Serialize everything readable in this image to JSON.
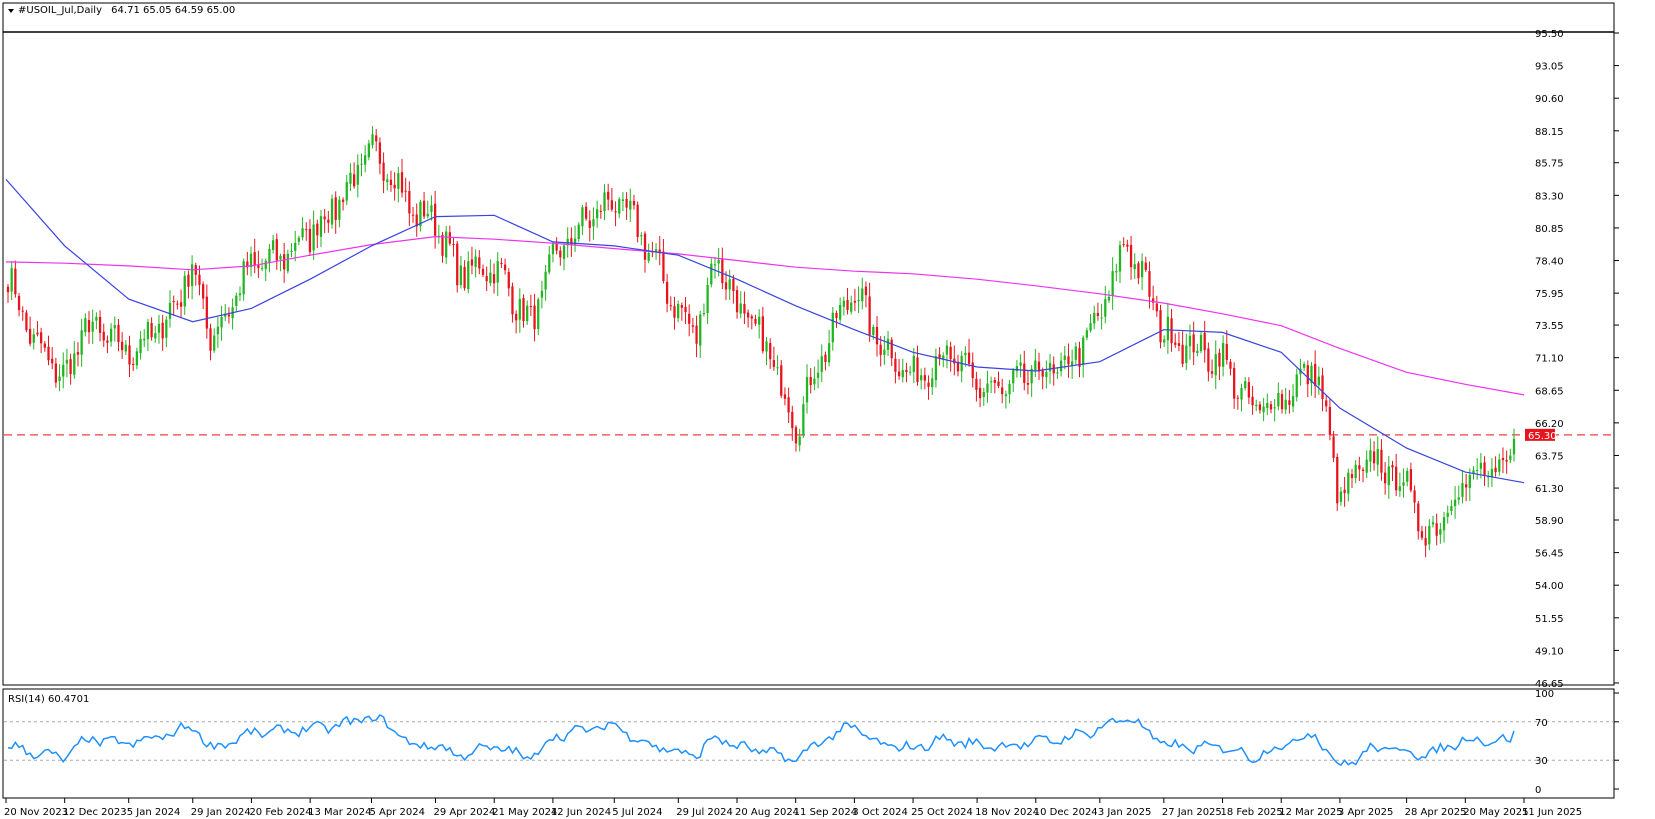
{
  "header": {
    "symbol": "#USOIL_Jul,Daily",
    "ohlc": "64.71 65.05 64.59 65.00"
  },
  "price_axis": {
    "ticks": [
      "95.50",
      "93.05",
      "90.60",
      "88.15",
      "85.75",
      "83.30",
      "80.85",
      "78.40",
      "75.95",
      "73.55",
      "71.10",
      "68.65",
      "66.20",
      "63.75",
      "61.30",
      "58.90",
      "56.45",
      "54.00",
      "51.55",
      "49.10",
      "46.65"
    ],
    "current_price_label": "65.30"
  },
  "rsi_panel": {
    "label": "RSI(14) 60.4701",
    "ticks": [
      "100",
      "70",
      "30",
      "0"
    ]
  },
  "time_axis": {
    "labels": [
      "20 Nov 2023",
      "12 Dec 2023",
      "5 Jan 2024",
      "29 Jan 2024",
      "20 Feb 2024",
      "13 Mar 2024",
      "5 Apr 2024",
      "29 Apr 2024",
      "21 May 2024",
      "12 Jun 2024",
      "5 Jul 2024",
      "29 Jul 2024",
      "20 Aug 2024",
      "11 Sep 2024",
      "3 Oct 2024",
      "25 Oct 2024",
      "18 Nov 2024",
      "10 Dec 2024",
      "3 Jan 2025",
      "27 Jan 2025",
      "18 Feb 2025",
      "12 Mar 2025",
      "3 Apr 2025",
      "28 Apr 2025",
      "20 May 2025",
      "11 Jun 2025"
    ]
  },
  "colors": {
    "bull": "#21b521",
    "bear": "#e8141d",
    "ma_fast": "#3844e0",
    "ma_slow": "#ee33ee",
    "rsi": "#1e90ff",
    "hline": "#f04040",
    "price_badge": "#e8141d"
  },
  "chart_data": {
    "type": "candlestick",
    "instrument": "#USOIL_Jul",
    "timeframe": "Daily",
    "last_ohlc": {
      "open": 64.71,
      "high": 65.05,
      "low": 64.59,
      "close": 65.0
    },
    "ylim": [
      46.65,
      95.5
    ],
    "horizontal_level": 65.3,
    "close_path": [
      {
        "date": "20 Nov 2023",
        "close": 77.5
      },
      {
        "date": "1 Dec 2023",
        "close": 72.0
      },
      {
        "date": "12 Dec 2023",
        "close": 69.5
      },
      {
        "date": "20 Dec 2023",
        "close": 73.5
      },
      {
        "date": "5 Jan 2024",
        "close": 71.5
      },
      {
        "date": "18 Jan 2024",
        "close": 73.5
      },
      {
        "date": "29 Jan 2024",
        "close": 78.0
      },
      {
        "date": "5 Feb 2024",
        "close": 72.5
      },
      {
        "date": "20 Feb 2024",
        "close": 78.0
      },
      {
        "date": "1 Mar 2024",
        "close": 78.5
      },
      {
        "date": "13 Mar 2024",
        "close": 80.5
      },
      {
        "date": "22 Mar 2024",
        "close": 82.5
      },
      {
        "date": "5 Apr 2024",
        "close": 86.5
      },
      {
        "date": "12 Apr 2024",
        "close": 85.5
      },
      {
        "date": "20 Apr 2024",
        "close": 82.0
      },
      {
        "date": "29 Apr 2024",
        "close": 81.5
      },
      {
        "date": "7 May 2024",
        "close": 77.5
      },
      {
        "date": "21 May 2024",
        "close": 78.0
      },
      {
        "date": "4 Jun 2024",
        "close": 73.5
      },
      {
        "date": "12 Jun 2024",
        "close": 78.5
      },
      {
        "date": "25 Jun 2024",
        "close": 81.5
      },
      {
        "date": "5 Jul 2024",
        "close": 83.0
      },
      {
        "date": "15 Jul 2024",
        "close": 80.5
      },
      {
        "date": "29 Jul 2024",
        "close": 74.5
      },
      {
        "date": "5 Aug 2024",
        "close": 73.0
      },
      {
        "date": "12 Aug 2024",
        "close": 79.0
      },
      {
        "date": "20 Aug 2024",
        "close": 75.0
      },
      {
        "date": "1 Sep 2024",
        "close": 71.5
      },
      {
        "date": "11 Sep 2024",
        "close": 66.0
      },
      {
        "date": "20 Sep 2024",
        "close": 71.0
      },
      {
        "date": "3 Oct 2024",
        "close": 76.5
      },
      {
        "date": "10 Oct 2024",
        "close": 73.0
      },
      {
        "date": "25 Oct 2024",
        "close": 69.5
      },
      {
        "date": "5 Nov 2024",
        "close": 71.5
      },
      {
        "date": "18 Nov 2024",
        "close": 69.0
      },
      {
        "date": "28 Nov 2024",
        "close": 68.5
      },
      {
        "date": "10 Dec 2024",
        "close": 70.0
      },
      {
        "date": "20 Dec 2024",
        "close": 70.0
      },
      {
        "date": "3 Jan 2025",
        "close": 74.0
      },
      {
        "date": "13 Jan 2025",
        "close": 80.0
      },
      {
        "date": "27 Jan 2025",
        "close": 73.0
      },
      {
        "date": "10 Feb 2025",
        "close": 71.5
      },
      {
        "date": "18 Feb 2025",
        "close": 71.0
      },
      {
        "date": "1 Mar 2025",
        "close": 67.0
      },
      {
        "date": "12 Mar 2025",
        "close": 68.0
      },
      {
        "date": "25 Mar 2025",
        "close": 70.5
      },
      {
        "date": "3 Apr 2025",
        "close": 60.5
      },
      {
        "date": "15 Apr 2025",
        "close": 63.5
      },
      {
        "date": "28 Apr 2025",
        "close": 61.5
      },
      {
        "date": "5 May 2025",
        "close": 57.5
      },
      {
        "date": "20 May 2025",
        "close": 62.0
      },
      {
        "date": "5 Jun 2025",
        "close": 62.5
      },
      {
        "date": "11 Jun 2025",
        "close": 65.0
      }
    ],
    "ma_fast_path": [
      {
        "date": "20 Nov 2023",
        "value": 84.5
      },
      {
        "date": "12 Dec 2023",
        "value": 79.5
      },
      {
        "date": "5 Jan 2024",
        "value": 75.5
      },
      {
        "date": "29 Jan 2024",
        "value": 73.8
      },
      {
        "date": "20 Feb 2024",
        "value": 74.8
      },
      {
        "date": "13 Mar 2024",
        "value": 77.0
      },
      {
        "date": "5 Apr 2024",
        "value": 79.5
      },
      {
        "date": "29 Apr 2024",
        "value": 81.7
      },
      {
        "date": "21 May 2024",
        "value": 81.8
      },
      {
        "date": "12 Jun 2024",
        "value": 79.8
      },
      {
        "date": "5 Jul 2024",
        "value": 79.5
      },
      {
        "date": "29 Jul 2024",
        "value": 78.8
      },
      {
        "date": "20 Aug 2024",
        "value": 77.0
      },
      {
        "date": "11 Sep 2024",
        "value": 75.0
      },
      {
        "date": "3 Oct 2024",
        "value": 73.2
      },
      {
        "date": "25 Oct 2024",
        "value": 71.5
      },
      {
        "date": "18 Nov 2024",
        "value": 70.4
      },
      {
        "date": "10 Dec 2024",
        "value": 70.1
      },
      {
        "date": "3 Jan 2025",
        "value": 70.8
      },
      {
        "date": "27 Jan 2025",
        "value": 73.2
      },
      {
        "date": "18 Feb 2025",
        "value": 73.0
      },
      {
        "date": "12 Mar 2025",
        "value": 71.5
      },
      {
        "date": "3 Apr 2025",
        "value": 67.3
      },
      {
        "date": "28 Apr 2025",
        "value": 64.3
      },
      {
        "date": "20 May 2025",
        "value": 62.5
      },
      {
        "date": "11 Jun 2025",
        "value": 61.7
      }
    ],
    "ma_slow_path": [
      {
        "date": "20 Nov 2023",
        "value": 78.3
      },
      {
        "date": "12 Dec 2023",
        "value": 78.2
      },
      {
        "date": "5 Jan 2024",
        "value": 78.0
      },
      {
        "date": "29 Jan 2024",
        "value": 77.7
      },
      {
        "date": "20 Feb 2024",
        "value": 78.0
      },
      {
        "date": "13 Mar 2024",
        "value": 78.8
      },
      {
        "date": "5 Apr 2024",
        "value": 79.6
      },
      {
        "date": "29 Apr 2024",
        "value": 80.2
      },
      {
        "date": "21 May 2024",
        "value": 80.0
      },
      {
        "date": "12 Jun 2024",
        "value": 79.7
      },
      {
        "date": "5 Jul 2024",
        "value": 79.3
      },
      {
        "date": "29 Jul 2024",
        "value": 78.9
      },
      {
        "date": "20 Aug 2024",
        "value": 78.4
      },
      {
        "date": "11 Sep 2024",
        "value": 77.9
      },
      {
        "date": "3 Oct 2024",
        "value": 77.6
      },
      {
        "date": "25 Oct 2024",
        "value": 77.4
      },
      {
        "date": "18 Nov 2024",
        "value": 77.0
      },
      {
        "date": "10 Dec 2024",
        "value": 76.5
      },
      {
        "date": "3 Jan 2025",
        "value": 75.9
      },
      {
        "date": "27 Jan 2025",
        "value": 75.2
      },
      {
        "date": "18 Feb 2025",
        "value": 74.4
      },
      {
        "date": "12 Mar 2025",
        "value": 73.5
      },
      {
        "date": "3 Apr 2025",
        "value": 71.8
      },
      {
        "date": "28 Apr 2025",
        "value": 70.0
      },
      {
        "date": "20 May 2025",
        "value": 69.1
      },
      {
        "date": "11 Jun 2025",
        "value": 68.3
      }
    ],
    "rsi": {
      "period": 14,
      "last_value": 60.4701,
      "ylim": [
        0,
        100
      ],
      "levels": [
        30,
        70
      ],
      "path": [
        {
          "date": "20 Nov 2023",
          "value": 45
        },
        {
          "date": "1 Dec 2023",
          "value": 38
        },
        {
          "date": "12 Dec 2023",
          "value": 32
        },
        {
          "date": "20 Dec 2023",
          "value": 52
        },
        {
          "date": "5 Jan 2024",
          "value": 47
        },
        {
          "date": "18 Jan 2024",
          "value": 55
        },
        {
          "date": "29 Jan 2024",
          "value": 66
        },
        {
          "date": "5 Feb 2024",
          "value": 42
        },
        {
          "date": "20 Feb 2024",
          "value": 58
        },
        {
          "date": "1 Mar 2024",
          "value": 60
        },
        {
          "date": "13 Mar 2024",
          "value": 63
        },
        {
          "date": "22 Mar 2024",
          "value": 65
        },
        {
          "date": "5 Apr 2024",
          "value": 75
        },
        {
          "date": "12 Apr 2024",
          "value": 66
        },
        {
          "date": "20 Apr 2024",
          "value": 45
        },
        {
          "date": "29 Apr 2024",
          "value": 46
        },
        {
          "date": "7 May 2024",
          "value": 35
        },
        {
          "date": "21 May 2024",
          "value": 44
        },
        {
          "date": "4 Jun 2024",
          "value": 32
        },
        {
          "date": "12 Jun 2024",
          "value": 55
        },
        {
          "date": "25 Jun 2024",
          "value": 62
        },
        {
          "date": "5 Jul 2024",
          "value": 67
        },
        {
          "date": "15 Jul 2024",
          "value": 50
        },
        {
          "date": "29 Jul 2024",
          "value": 38
        },
        {
          "date": "5 Aug 2024",
          "value": 35
        },
        {
          "date": "12 Aug 2024",
          "value": 55
        },
        {
          "date": "20 Aug 2024",
          "value": 44
        },
        {
          "date": "1 Sep 2024",
          "value": 38
        },
        {
          "date": "11 Sep 2024",
          "value": 30
        },
        {
          "date": "20 Sep 2024",
          "value": 50
        },
        {
          "date": "3 Oct 2024",
          "value": 66
        },
        {
          "date": "10 Oct 2024",
          "value": 48
        },
        {
          "date": "25 Oct 2024",
          "value": 42
        },
        {
          "date": "5 Nov 2024",
          "value": 52
        },
        {
          "date": "18 Nov 2024",
          "value": 46
        },
        {
          "date": "28 Nov 2024",
          "value": 45
        },
        {
          "date": "10 Dec 2024",
          "value": 49
        },
        {
          "date": "20 Dec 2024",
          "value": 52
        },
        {
          "date": "3 Jan 2025",
          "value": 63
        },
        {
          "date": "13 Jan 2025",
          "value": 76
        },
        {
          "date": "27 Jan 2025",
          "value": 46
        },
        {
          "date": "10 Feb 2025",
          "value": 42
        },
        {
          "date": "18 Feb 2025",
          "value": 45
        },
        {
          "date": "1 Mar 2025",
          "value": 33
        },
        {
          "date": "12 Mar 2025",
          "value": 45
        },
        {
          "date": "25 Mar 2025",
          "value": 58
        },
        {
          "date": "3 Apr 2025",
          "value": 22
        },
        {
          "date": "15 Apr 2025",
          "value": 42
        },
        {
          "date": "28 Apr 2025",
          "value": 41
        },
        {
          "date": "5 May 2025",
          "value": 34
        },
        {
          "date": "20 May 2025",
          "value": 52
        },
        {
          "date": "5 Jun 2025",
          "value": 50
        },
        {
          "date": "11 Jun 2025",
          "value": 60
        }
      ]
    }
  }
}
